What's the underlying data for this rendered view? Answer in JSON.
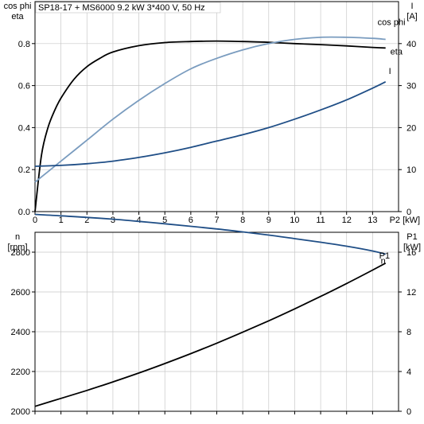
{
  "chart_data": [
    {
      "type": "line",
      "title": "SP18-17 + MS6000   9.2 kW   3*400 V, 50 Hz",
      "xlabel": "P2 [kW]",
      "xlim": [
        0,
        14
      ],
      "x_ticks": [
        0,
        1,
        2,
        3,
        4,
        5,
        6,
        7,
        8,
        9,
        10,
        11,
        12,
        13
      ],
      "ylabel_left": [
        "cos phi",
        "eta"
      ],
      "ylim_left": [
        0,
        1.0
      ],
      "y_ticks_left": [
        0.0,
        0.2,
        0.4,
        0.6,
        0.8
      ],
      "ylabel_right": [
        "I",
        "[A]"
      ],
      "ylim_right": [
        0,
        50
      ],
      "y_ticks_right": [
        0,
        10,
        20,
        30,
        40
      ],
      "grid": true,
      "series": [
        {
          "name": "eta",
          "axis": "left",
          "color": "#000000",
          "x": [
            0,
            0.25,
            0.5,
            0.75,
            1,
            1.5,
            2,
            2.5,
            3,
            4,
            5,
            6,
            7,
            8,
            9,
            10,
            11,
            12,
            13,
            13.5
          ],
          "y": [
            0,
            0.27,
            0.4,
            0.48,
            0.54,
            0.63,
            0.69,
            0.73,
            0.76,
            0.79,
            0.805,
            0.81,
            0.812,
            0.81,
            0.806,
            0.8,
            0.795,
            0.789,
            0.782,
            0.779
          ]
        },
        {
          "name": "cos phi",
          "axis": "left",
          "color": "#7a9cbf",
          "x": [
            0,
            0.5,
            1,
            2,
            3,
            4,
            5,
            6,
            7,
            8,
            9,
            10,
            11,
            12,
            13,
            13.5
          ],
          "y": [
            0.14,
            0.19,
            0.24,
            0.34,
            0.44,
            0.53,
            0.61,
            0.68,
            0.73,
            0.77,
            0.8,
            0.82,
            0.83,
            0.83,
            0.825,
            0.82
          ]
        },
        {
          "name": "I",
          "axis": "right",
          "color": "#1f4e86",
          "x": [
            0,
            1,
            2,
            3,
            4,
            5,
            6,
            7,
            8,
            9,
            10,
            11,
            12,
            13,
            13.5
          ],
          "y": [
            10.8,
            11.0,
            11.4,
            12.0,
            12.9,
            14.0,
            15.3,
            16.8,
            18.3,
            20.0,
            22.0,
            24.2,
            26.6,
            29.4,
            30.9
          ]
        }
      ]
    },
    {
      "type": "line",
      "xlim": [
        0,
        14
      ],
      "x_ticks": [
        0,
        1,
        2,
        3,
        4,
        5,
        6,
        7,
        8,
        9,
        10,
        11,
        12,
        13
      ],
      "ylabel_left": [
        "n",
        "[rpm]"
      ],
      "ylim_left": [
        2000,
        2900
      ],
      "y_ticks_left": [
        2000,
        2200,
        2400,
        2600,
        2800
      ],
      "ylabel_right": [
        "P1",
        "[kW]"
      ],
      "ylim_right": [
        0,
        18
      ],
      "y_ticks_right": [
        0,
        4,
        8,
        12,
        16
      ],
      "grid": true,
      "series": [
        {
          "name": "n",
          "axis": "left",
          "color": "#1f4e86",
          "x": [
            0,
            1,
            2,
            3,
            4,
            5,
            6,
            7,
            8,
            9,
            10,
            11,
            12,
            13,
            13.5
          ],
          "y": [
            2990,
            2983,
            2975,
            2966,
            2955,
            2943,
            2930,
            2917,
            2902,
            2886,
            2868,
            2850,
            2830,
            2806,
            2790
          ]
        },
        {
          "name": "P1",
          "axis": "right",
          "color": "#000000",
          "x": [
            0,
            1,
            2,
            3,
            4,
            5,
            6,
            7,
            8,
            9,
            10,
            11,
            12,
            13,
            13.5
          ],
          "y": [
            0.5,
            1.3,
            2.1,
            2.95,
            3.85,
            4.8,
            5.8,
            6.85,
            7.95,
            9.1,
            10.3,
            11.55,
            12.85,
            14.2,
            14.9
          ]
        }
      ]
    }
  ]
}
